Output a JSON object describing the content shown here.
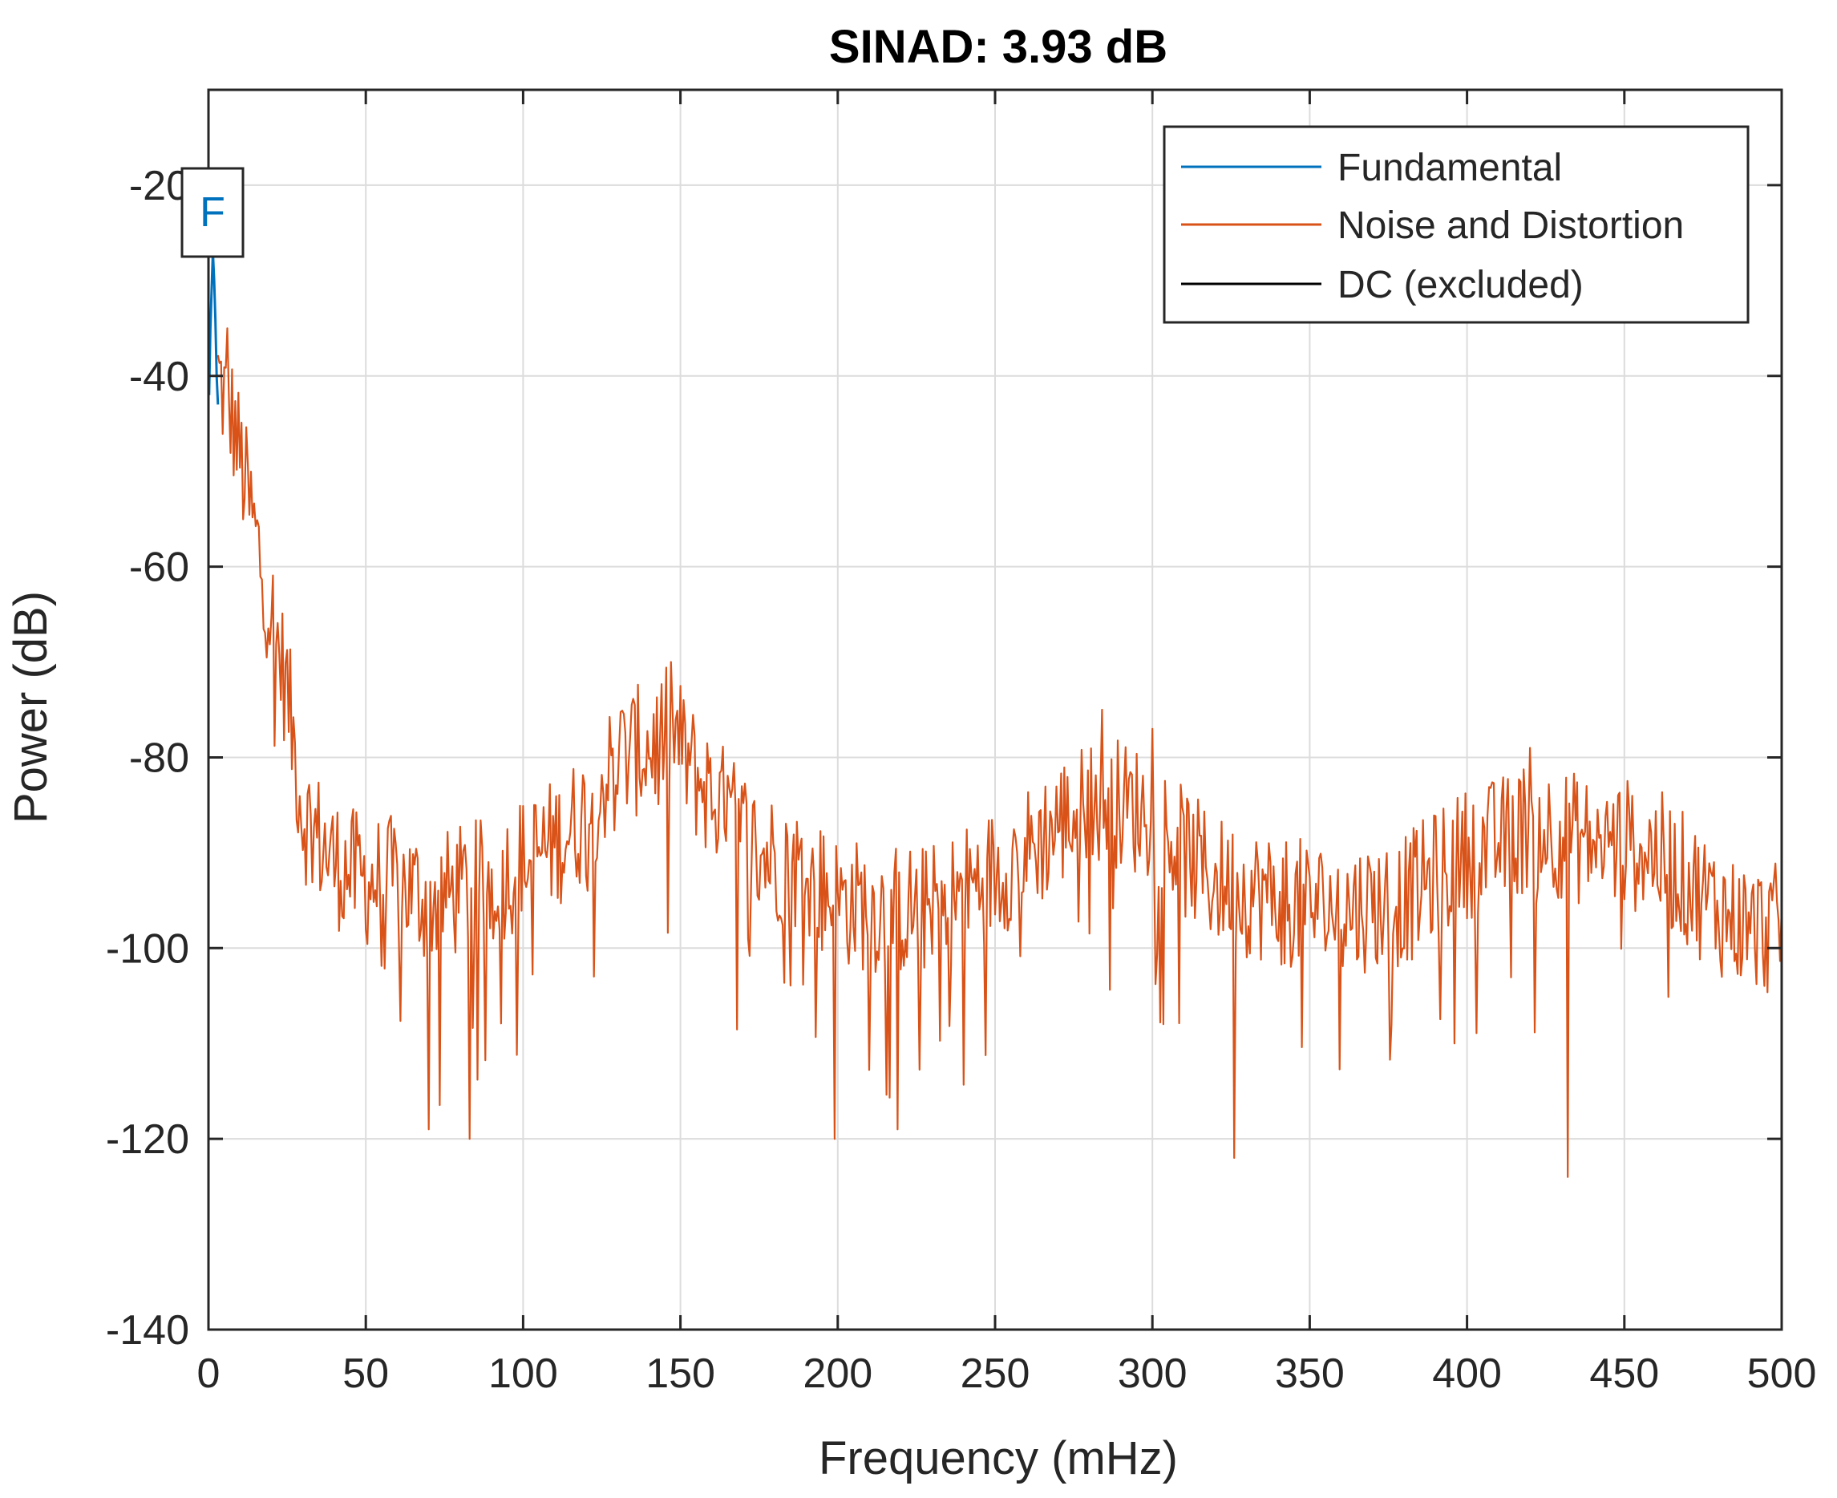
{
  "chart_data": {
    "type": "line",
    "title": "SINAD:   3.93 dB",
    "xlabel": "Frequency (mHz)",
    "ylabel": "Power (dB)",
    "xlim": [
      0,
      500
    ],
    "ylim": [
      -140,
      -10
    ],
    "xticks": [
      0,
      50,
      100,
      150,
      200,
      250,
      300,
      350,
      400,
      450,
      500
    ],
    "yticks": [
      -140,
      -120,
      -100,
      -80,
      -60,
      -40,
      -20
    ],
    "grid": true,
    "legend": {
      "position": "top-right",
      "entries": [
        "Fundamental",
        "Noise and Distortion",
        "DC (excluded)"
      ]
    },
    "marker_label": "F",
    "colors": {
      "fundamental": "#0072bd",
      "noise": "#d95319",
      "dc": "#000000",
      "grid": "#dcdcdc",
      "axes": "#262626"
    },
    "series": [
      {
        "name": "Fundamental",
        "color": "#0072bd",
        "x": [
          0.2,
          0.6,
          1.0,
          1.4,
          1.8,
          2.2,
          2.6,
          3.0
        ],
        "y": [
          -42,
          -35,
          -31,
          -27,
          -30,
          -34,
          -40,
          -43
        ]
      },
      {
        "name": "Noise and Distortion",
        "color": "#d95319",
        "envelope_x": [
          3,
          5,
          8,
          12,
          15,
          20,
          25,
          30,
          40,
          50,
          60,
          70,
          80,
          90,
          100,
          110,
          120,
          130,
          140,
          147,
          155,
          165,
          175,
          185,
          200,
          215,
          230,
          245,
          260,
          270,
          280,
          285,
          290,
          300,
          310,
          320,
          340,
          360,
          380,
          400,
          410,
          420,
          430,
          440,
          450,
          460,
          470,
          480,
          490,
          500
        ],
        "envelope_y": [
          -40,
          -42,
          -45,
          -52,
          -57,
          -65,
          -73,
          -86,
          -91,
          -93,
          -93,
          -95,
          -94,
          -93,
          -91,
          -89,
          -86,
          -80,
          -79,
          -77,
          -82,
          -86,
          -90,
          -91,
          -95,
          -96,
          -96,
          -93,
          -90,
          -87,
          -85,
          -84,
          -85,
          -86,
          -90,
          -93,
          -95,
          -96,
          -95,
          -90,
          -89,
          -87,
          -88,
          -89,
          -89,
          -90,
          -93,
          -96,
          -98,
          -98
        ],
        "jitter_db": 7,
        "dip_db": 22,
        "step_mhz": 0.5,
        "peaks": [
          {
            "x": 6,
            "y": -35
          },
          {
            "x": 147,
            "y": -70
          },
          {
            "x": 284,
            "y": -75
          },
          {
            "x": 300,
            "y": -77
          },
          {
            "x": 420,
            "y": -79
          }
        ],
        "dips": [
          {
            "x": 70,
            "y": -119
          },
          {
            "x": 83,
            "y": -120
          },
          {
            "x": 199,
            "y": -120
          },
          {
            "x": 219,
            "y": -119
          },
          {
            "x": 326,
            "y": -122
          },
          {
            "x": 432,
            "y": -124
          }
        ]
      },
      {
        "name": "DC (excluded)",
        "color": "#000000",
        "x": [],
        "y": []
      }
    ]
  }
}
